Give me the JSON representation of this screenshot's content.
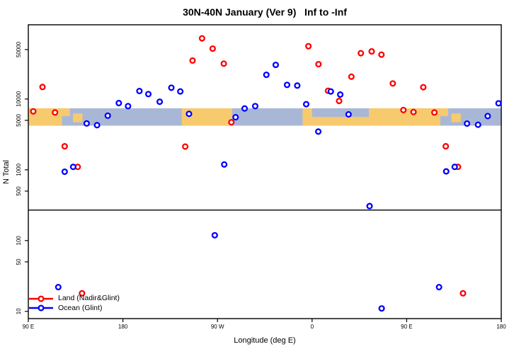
{
  "chart_data": {
    "type": "scatter",
    "title": "30N-40N January (Ver 9)   Inf to -Inf",
    "xlabel": "Longitude (deg E)",
    "ylabel": "N Total",
    "x_axis": {
      "range": [
        90,
        540
      ],
      "ticks": [
        {
          "pos": 90,
          "label": "90 E"
        },
        {
          "pos": 180,
          "label": "180"
        },
        {
          "pos": 270,
          "label": "90 W"
        },
        {
          "pos": 360,
          "label": "0"
        },
        {
          "pos": 450,
          "label": "90 E"
        },
        {
          "pos": 540,
          "label": "180"
        }
      ],
      "note": "longitude axis wraps eastward: 90E to 180 to 90W to 0 to 90E to 180"
    },
    "y_axis": {
      "scale": "log",
      "range": [
        7.9,
        112000
      ],
      "ticks": [
        10,
        50,
        100,
        500,
        1000,
        5000,
        10000,
        50000
      ]
    },
    "divider_n": 270,
    "map_band": {
      "n_top": 7400,
      "n_bottom": 4200,
      "land_color": "#F8CA6E",
      "ocean_color": "#A9B7D7",
      "segments": [
        {
          "from": 90,
          "to": 122,
          "type": "land",
          "frac_top": 0,
          "frac_bottom": 1
        },
        {
          "from": 122,
          "to": 129.5,
          "type": "land",
          "frac_top": 0,
          "frac_bottom": 0.45
        },
        {
          "from": 132.5,
          "to": 141.5,
          "type": "land",
          "frac_top": 0.3,
          "frac_bottom": 0.8
        },
        {
          "from": 236,
          "to": 284,
          "type": "land",
          "frac_top": 0,
          "frac_bottom": 1
        },
        {
          "from": 351,
          "to": 360,
          "type": "land",
          "frac_top": 0,
          "frac_bottom": 1
        },
        {
          "from": 360,
          "to": 414,
          "type": "land",
          "frac_top": 0.5,
          "frac_bottom": 1
        },
        {
          "from": 414,
          "to": 482,
          "type": "land",
          "frac_top": 0,
          "frac_bottom": 1
        },
        {
          "from": 482,
          "to": 489.5,
          "type": "land",
          "frac_top": 0,
          "frac_bottom": 0.45
        },
        {
          "from": 492.5,
          "to": 501.5,
          "type": "land",
          "frac_top": 0.3,
          "frac_bottom": 0.8
        }
      ]
    },
    "series": [
      {
        "name": "Land (Nadir&Glint)",
        "color": "#FF0000",
        "points": [
          [
            94.7,
            6700
          ],
          [
            103.5,
            14800
          ],
          [
            115.4,
            6460
          ],
          [
            124.6,
            2150
          ],
          [
            137.0,
            1100
          ],
          [
            141.1,
            18
          ],
          [
            239.3,
            2130
          ],
          [
            246.3,
            35000
          ],
          [
            255.3,
            72000
          ],
          [
            265.4,
            51600
          ],
          [
            276.0,
            31600
          ],
          [
            283.2,
            4700
          ],
          [
            356.5,
            55800
          ],
          [
            366.1,
            31100
          ],
          [
            375.2,
            13100
          ],
          [
            385.7,
            9400
          ],
          [
            397.4,
            20700
          ],
          [
            406.4,
            44400
          ],
          [
            416.7,
            47100
          ],
          [
            426.0,
            42400
          ],
          [
            436.8,
            16600
          ],
          [
            446.9,
            7000
          ],
          [
            456.5,
            6560
          ],
          [
            465.8,
            14700
          ],
          [
            476.4,
            6460
          ],
          [
            487.2,
            2150
          ],
          [
            498.8,
            1100
          ],
          [
            503.6,
            18
          ]
        ]
      },
      {
        "name": "Ocean (Glint)",
        "color": "#0000FF",
        "points": [
          [
            118.5,
            22
          ],
          [
            124.6,
            940
          ],
          [
            132.7,
            1100
          ],
          [
            145.5,
            4520
          ],
          [
            155.4,
            4270
          ],
          [
            165.6,
            5820
          ],
          [
            176.1,
            8770
          ],
          [
            184.9,
            7940
          ],
          [
            195.7,
            12970
          ],
          [
            204.2,
            11750
          ],
          [
            215.0,
            9160
          ],
          [
            226.1,
            14450
          ],
          [
            234.6,
            12800
          ],
          [
            242.9,
            6170
          ],
          [
            267.4,
            119
          ],
          [
            276.4,
            1190
          ],
          [
            287.2,
            5530
          ],
          [
            295.8,
            7360
          ],
          [
            305.9,
            7940
          ],
          [
            316.5,
            22000
          ],
          [
            325.4,
            30400
          ],
          [
            336.2,
            15850
          ],
          [
            345.9,
            15500
          ],
          [
            354.4,
            8450
          ],
          [
            365.9,
            3470
          ],
          [
            377.8,
            12790
          ],
          [
            386.8,
            11560
          ],
          [
            394.7,
            6070
          ],
          [
            414.7,
            307
          ],
          [
            426.2,
            11
          ],
          [
            480.8,
            22
          ],
          [
            487.6,
            950
          ],
          [
            495.7,
            1100
          ],
          [
            507.4,
            4500
          ],
          [
            517.9,
            4330
          ],
          [
            527.1,
            5750
          ],
          [
            537.4,
            8710
          ]
        ]
      }
    ],
    "legend_position": "bottom-left",
    "grid": false
  }
}
